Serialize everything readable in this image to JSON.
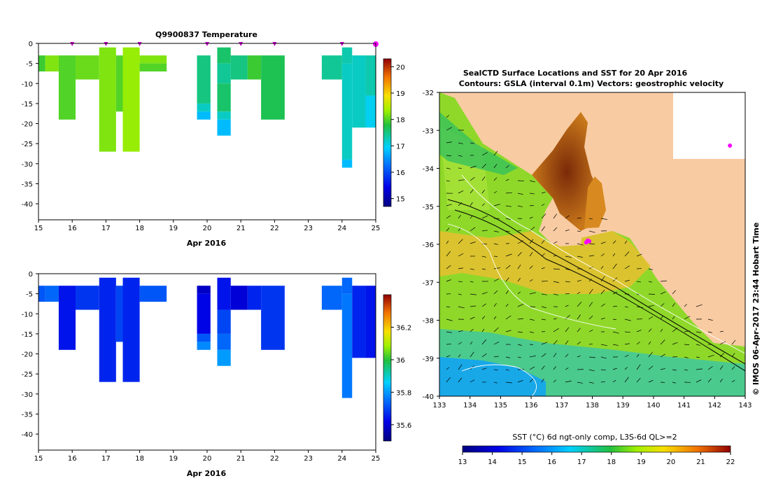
{
  "chart_data": [
    {
      "type": "heatmap",
      "title": "Q9900837  Temperature",
      "xlabel": "Apr 2016",
      "ylabel": "",
      "xlim": [
        15,
        25
      ],
      "ylim": [
        -44,
        0
      ],
      "x_ticks": [
        "15",
        "16",
        "17",
        "18",
        "19",
        "20",
        "21",
        "22",
        "23",
        "24",
        "25"
      ],
      "y_ticks": [
        "0",
        "-5",
        "-10",
        "-15",
        "-20",
        "-25",
        "-30",
        "-35",
        "-40"
      ],
      "colorbar": {
        "min": 14.7,
        "max": 20.3,
        "ticks": [
          "15",
          "16",
          "17",
          "18",
          "19",
          "20"
        ]
      },
      "surface_markers": [
        16.0,
        17.0,
        18.0,
        20.0,
        21.0,
        22.0,
        24.0,
        25.0
      ],
      "cells": [
        [
          15.0,
          15.2,
          -3,
          -7,
          17.9
        ],
        [
          15.2,
          15.6,
          -3,
          -7,
          18.2
        ],
        [
          15.6,
          16.1,
          -3,
          -19,
          18.0
        ],
        [
          16.1,
          16.8,
          -3,
          -9,
          18.1
        ],
        [
          16.8,
          17.3,
          -1,
          -27,
          18.2
        ],
        [
          17.3,
          17.5,
          -3,
          -17,
          18.0
        ],
        [
          17.5,
          18.0,
          -1,
          -27,
          18.3
        ],
        [
          18.0,
          18.8,
          -3,
          -5,
          18.2
        ],
        [
          18.0,
          18.8,
          -5,
          -7,
          18.0
        ],
        [
          19.7,
          20.1,
          -3,
          -15,
          17.5
        ],
        [
          19.7,
          20.1,
          -15,
          -17,
          17.2
        ],
        [
          19.7,
          20.1,
          -17,
          -19,
          16.8
        ],
        [
          20.3,
          20.7,
          -1,
          -5,
          17.6
        ],
        [
          20.3,
          20.7,
          -5,
          -10,
          17.4
        ],
        [
          20.3,
          20.7,
          -10,
          -17,
          17.6
        ],
        [
          20.3,
          20.7,
          -17,
          -19,
          17.2
        ],
        [
          20.3,
          20.7,
          -19,
          -23,
          16.8
        ],
        [
          20.7,
          21.2,
          -3,
          -9,
          17.5
        ],
        [
          21.2,
          21.6,
          -3,
          -9,
          17.9
        ],
        [
          21.6,
          22.3,
          -3,
          -19,
          17.7
        ],
        [
          23.4,
          24.0,
          -3,
          -9,
          17.4
        ],
        [
          24.0,
          24.3,
          -1,
          -5,
          17.3
        ],
        [
          24.0,
          24.3,
          -5,
          -29,
          17.2
        ],
        [
          24.0,
          24.3,
          -29,
          -31,
          16.8
        ],
        [
          24.3,
          24.7,
          -3,
          -21,
          17.2
        ],
        [
          24.7,
          25.0,
          -3,
          -13,
          17.3
        ],
        [
          24.7,
          25.0,
          -13,
          -21,
          17.0
        ]
      ]
    },
    {
      "type": "heatmap",
      "title": "",
      "xlabel": "Apr 2016",
      "ylabel": "",
      "xlim": [
        15,
        25
      ],
      "ylim": [
        -44,
        0
      ],
      "x_ticks": [
        "15",
        "16",
        "17",
        "18",
        "19",
        "20",
        "21",
        "22",
        "23",
        "24",
        "25"
      ],
      "y_ticks": [
        "0",
        "-5",
        "-10",
        "-15",
        "-20",
        "-25",
        "-30",
        "-35",
        "-40"
      ],
      "colorbar": {
        "min": 35.5,
        "max": 36.4,
        "ticks": [
          "35.6",
          "35.8",
          "36",
          "36.2"
        ]
      },
      "cells": [
        [
          15.0,
          15.2,
          -3,
          -7,
          35.72
        ],
        [
          15.2,
          15.6,
          -3,
          -7,
          35.74
        ],
        [
          15.6,
          16.1,
          -3,
          -19,
          35.64
        ],
        [
          16.1,
          16.8,
          -3,
          -9,
          35.68
        ],
        [
          16.8,
          17.3,
          -1,
          -27,
          35.66
        ],
        [
          17.3,
          17.5,
          -3,
          -17,
          35.7
        ],
        [
          17.5,
          18.0,
          -1,
          -27,
          35.66
        ],
        [
          18.0,
          18.8,
          -3,
          -7,
          35.72
        ],
        [
          19.7,
          20.1,
          -3,
          -5,
          35.58
        ],
        [
          19.7,
          20.1,
          -5,
          -15,
          35.62
        ],
        [
          19.7,
          20.1,
          -15,
          -17,
          35.72
        ],
        [
          19.7,
          20.1,
          -17,
          -19,
          35.78
        ],
        [
          20.3,
          20.7,
          -1,
          -9,
          35.64
        ],
        [
          20.3,
          20.7,
          -9,
          -15,
          35.7
        ],
        [
          20.3,
          20.7,
          -15,
          -19,
          35.74
        ],
        [
          20.3,
          20.7,
          -19,
          -23,
          35.8
        ],
        [
          20.7,
          21.2,
          -3,
          -9,
          35.6
        ],
        [
          21.2,
          21.6,
          -3,
          -9,
          35.66
        ],
        [
          21.6,
          22.3,
          -3,
          -19,
          35.68
        ],
        [
          23.4,
          24.0,
          -3,
          -9,
          35.74
        ],
        [
          24.0,
          24.3,
          -1,
          -5,
          35.74
        ],
        [
          24.0,
          24.3,
          -5,
          -31,
          35.76
        ],
        [
          24.3,
          24.7,
          -3,
          -21,
          35.66
        ],
        [
          24.7,
          25.0,
          -3,
          -21,
          35.64
        ]
      ]
    },
    {
      "type": "heatmap",
      "title": "SealCTD Surface Locations and SST for 20 Apr 2016",
      "subtitle": "Contours: GSLA (interval 0.1m) Vectors: geostrophic velocity",
      "xlabel": "",
      "ylabel": "",
      "xlim": [
        133,
        143
      ],
      "ylim": [
        -40,
        -32
      ],
      "x_ticks": [
        "133",
        "134",
        "135",
        "136",
        "137",
        "138",
        "139",
        "140",
        "141",
        "142",
        "143"
      ],
      "y_ticks": [
        "-32",
        "-33",
        "-34",
        "-35",
        "-36",
        "-37",
        "-38",
        "-39",
        "-40"
      ],
      "colorbar": {
        "label": "SST (°C) 6d ngt-only comp, L3S-6d QL>=2",
        "min": 13,
        "max": 22,
        "ticks": [
          "13",
          "14",
          "15",
          "16",
          "17",
          "18",
          "19",
          "20",
          "21",
          "22"
        ]
      },
      "seal_locations": [
        [
          137.8,
          -35.95
        ],
        [
          137.85,
          -35.9
        ],
        [
          137.9,
          -35.92
        ],
        [
          142.5,
          -33.4
        ]
      ],
      "side_label": "© IMOS 06-Apr-2017 23:44 Hobart Time"
    }
  ]
}
